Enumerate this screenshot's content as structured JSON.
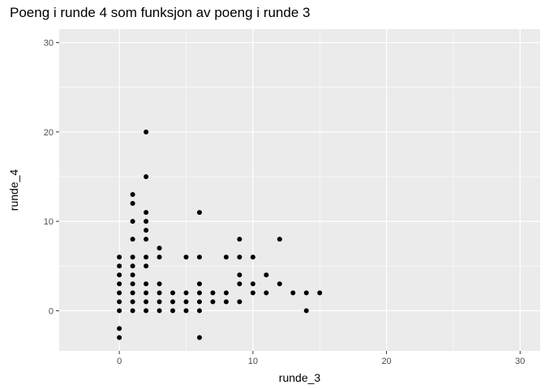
{
  "chart_data": {
    "type": "scatter",
    "title": "Poeng i runde 4 som funksjon av poeng i runde 3",
    "xlabel": "runde_3",
    "ylabel": "runde_4",
    "xlim": [
      -4.5,
      31.5
    ],
    "ylim": [
      -4.5,
      31.5
    ],
    "x_ticks": [
      0,
      10,
      20,
      30
    ],
    "y_ticks": [
      0,
      10,
      20,
      30
    ],
    "minor_ticks": [
      -5,
      5,
      15,
      25
    ],
    "grid": true,
    "background": "#ebebeb",
    "grid_color": "#ffffff",
    "point_color": "#000000",
    "points": [
      [
        0,
        -3
      ],
      [
        0,
        -2
      ],
      [
        0,
        0
      ],
      [
        0,
        1
      ],
      [
        0,
        2
      ],
      [
        0,
        3
      ],
      [
        0,
        4
      ],
      [
        0,
        5
      ],
      [
        0,
        6
      ],
      [
        1,
        0
      ],
      [
        1,
        1
      ],
      [
        1,
        2
      ],
      [
        1,
        3
      ],
      [
        1,
        4
      ],
      [
        1,
        5
      ],
      [
        1,
        6
      ],
      [
        1,
        8
      ],
      [
        1,
        10
      ],
      [
        1,
        12
      ],
      [
        1,
        13
      ],
      [
        2,
        0
      ],
      [
        2,
        1
      ],
      [
        2,
        2
      ],
      [
        2,
        3
      ],
      [
        2,
        5
      ],
      [
        2,
        6
      ],
      [
        2,
        8
      ],
      [
        2,
        9
      ],
      [
        2,
        10
      ],
      [
        2,
        11
      ],
      [
        2,
        15
      ],
      [
        2,
        20
      ],
      [
        3,
        0
      ],
      [
        3,
        1
      ],
      [
        3,
        2
      ],
      [
        3,
        3
      ],
      [
        3,
        6
      ],
      [
        3,
        7
      ],
      [
        4,
        0
      ],
      [
        4,
        1
      ],
      [
        4,
        2
      ],
      [
        5,
        0
      ],
      [
        5,
        1
      ],
      [
        5,
        2
      ],
      [
        5,
        6
      ],
      [
        6,
        -3
      ],
      [
        6,
        0
      ],
      [
        6,
        1
      ],
      [
        6,
        2
      ],
      [
        6,
        3
      ],
      [
        6,
        6
      ],
      [
        6,
        11
      ],
      [
        7,
        1
      ],
      [
        7,
        2
      ],
      [
        8,
        1
      ],
      [
        8,
        2
      ],
      [
        8,
        6
      ],
      [
        9,
        1
      ],
      [
        9,
        3
      ],
      [
        9,
        4
      ],
      [
        9,
        6
      ],
      [
        9,
        8
      ],
      [
        10,
        2
      ],
      [
        10,
        3
      ],
      [
        10,
        6
      ],
      [
        11,
        2
      ],
      [
        11,
        4
      ],
      [
        12,
        3
      ],
      [
        12,
        8
      ],
      [
        13,
        2
      ],
      [
        14,
        0
      ],
      [
        14,
        2
      ],
      [
        15,
        2
      ]
    ]
  }
}
